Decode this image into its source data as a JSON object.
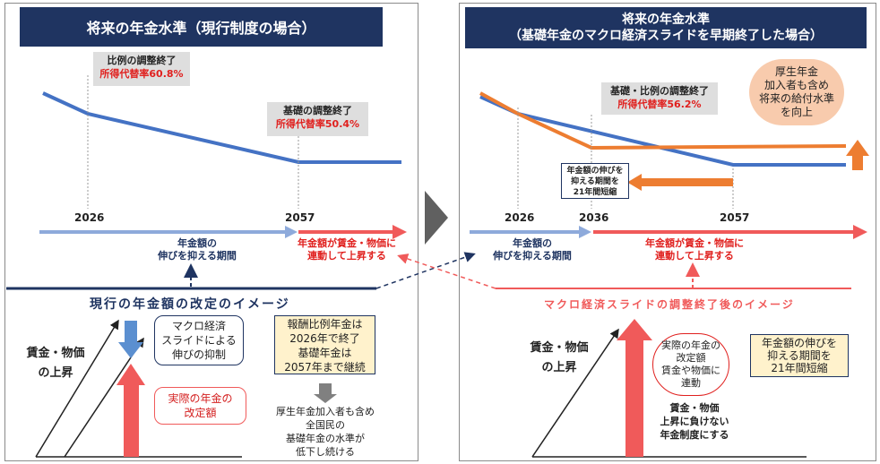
{
  "left_panel": {
    "title": "将来の年金水準（現行制度の場合）",
    "callout1": {
      "line1": "比例の調整終了",
      "line2": "所得代替率60.8%"
    },
    "callout2": {
      "line1": "基礎の調整終了",
      "line2": "所得代替率50.4%"
    },
    "year1": "2026",
    "year2": "2057",
    "blue_period_line1": "年金額の",
    "blue_period_line2": "伸びを抑える期間",
    "red_period_line1": "年金額が賃金・物価に",
    "red_period_line2": "連動して上昇する",
    "image_title": "現行の年金額の改定のイメージ",
    "wage_label_line1": "賃金・物価",
    "wage_label_line2": "の上昇",
    "slide_box": {
      "line1": "マクロ経済",
      "line2": "スライドによる",
      "line3": "伸びの抑制"
    },
    "actual_box": {
      "line1": "実際の年金の",
      "line2": "改定額"
    },
    "yellow_box": {
      "line1": "報酬比例年金は",
      "line2": "2026年で終了",
      "line3": "基礎年金は",
      "line4": "2057年まで継続"
    },
    "bottom_text": {
      "line1": "厚生年金加入者も含め",
      "line2": "全国民の",
      "line3": "基礎年金の水準が",
      "line4": "低下し続ける"
    }
  },
  "right_panel": {
    "title_line1": "将来の年金水準",
    "title_line2": "（基礎年金のマクロ経済スライドを早期終了した場合）",
    "callout": {
      "line1": "基礎・比例の調整終了",
      "line2": "所得代替率56.2%"
    },
    "orange_circle": {
      "line1": "厚生年金",
      "line2": "加入者も含め",
      "line3": "将来の給付水準",
      "line4": "を向上"
    },
    "shorten_box": {
      "line1": "年金額の伸びを",
      "line2": "抑える期間を",
      "line3": "21年間短縮"
    },
    "year1": "2026",
    "year2": "2036",
    "year3": "2057",
    "blue_period_line1": "年金額の",
    "blue_period_line2": "伸びを抑える期間",
    "red_period_line1": "年金額が賃金・物価に",
    "red_period_line2": "連動して上昇する",
    "image_title": "マクロ経済スライドの調整終了後のイメージ",
    "wage_label_line1": "賃金・物価",
    "wage_label_line2": "の上昇",
    "actual_circle": {
      "line1": "実際の年金の",
      "line2": "改定額",
      "line3": "賃金や物価に",
      "line4": "連動"
    },
    "yellow_box": {
      "line1": "年金額の伸びを",
      "line2": "抑える期間を",
      "line3": "21年間短縮"
    },
    "bottom_text": {
      "line1": "賃金・物価",
      "line2": "上昇に負けない",
      "line3": "年金制度にする"
    }
  },
  "colors": {
    "navy": "#1f3461",
    "blue_line": "#4472c4",
    "light_blue": "#8eaadb",
    "red": "#f05a5a",
    "orange": "#ed7d31",
    "callout_gray": "#dedede",
    "yellow": "#fff2cc"
  }
}
